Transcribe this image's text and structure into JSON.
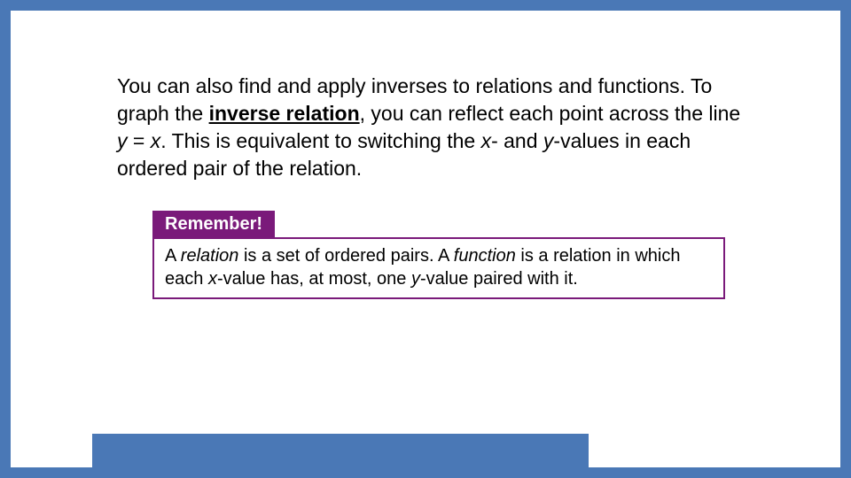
{
  "colors": {
    "frame_border": "#4a78b6",
    "background": "#ffffff",
    "text": "#000000",
    "remember_bg": "#7a1a7a",
    "remember_text": "#ffffff",
    "bottom_bar": "#4a78b6"
  },
  "typography": {
    "body_family": "Verdana, Geneva, sans-serif",
    "body_size_pt": 17,
    "remember_label_size_pt": 15,
    "remember_body_size_pt": 15
  },
  "main": {
    "t1": "You can also find and apply inverses to relations and functions. To graph the ",
    "t2_bold_underline": "inverse relation",
    "t3": ", you can reflect each point across the line ",
    "t4_italic": "y",
    "t5": " = ",
    "t6_italic": "x",
    "t7": ". This is equivalent to switching the ",
    "t8_italic": "x",
    "t9": "- and ",
    "t10_italic": "y",
    "t11": "-values in each ordered pair of the relation."
  },
  "remember": {
    "label": "Remember!",
    "b1": "A ",
    "b2_italic": "relation",
    "b3": " is a set of ordered pairs. A ",
    "b4_italic": "function",
    "b5": " is a relation in which each ",
    "b6_italic": "x",
    "b7": "-value has, at most, one ",
    "b8_italic": "y",
    "b9": "-value paired with it."
  }
}
